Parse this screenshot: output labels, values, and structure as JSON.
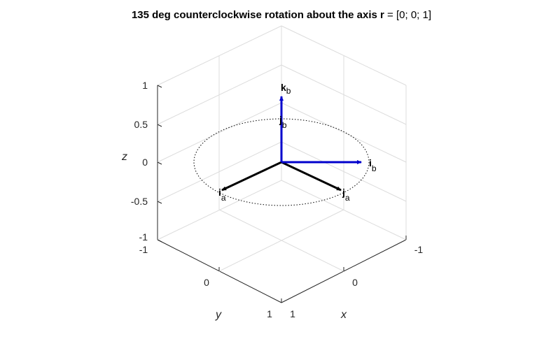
{
  "title": {
    "prefix": "135 deg counterclockwise rotation about the axis ",
    "axis_symbol": "r",
    "suffix": " = [0; 0; 1]"
  },
  "axes": {
    "x_label": "x",
    "y_label": "y",
    "z_label": "z",
    "z_ticks": [
      "1",
      "0.5",
      "0",
      "-0.5",
      "-1"
    ],
    "y_ticks": [
      "-1",
      "0",
      "1"
    ],
    "x_ticks": [
      "1",
      "0",
      "-1"
    ]
  },
  "vectors": {
    "i_a": {
      "main": "i",
      "sub": "a"
    },
    "j_a": {
      "main": "j",
      "sub": "a"
    },
    "i_b": {
      "main": "i",
      "sub": "b"
    },
    "j_b": {
      "main": "j",
      "sub": "b"
    },
    "k_b": {
      "main": "k",
      "sub": "b"
    }
  },
  "colors": {
    "frame_a": "#000000",
    "frame_b": "#0000cc",
    "grid": "#dcdcdc",
    "box": "#262626"
  }
}
